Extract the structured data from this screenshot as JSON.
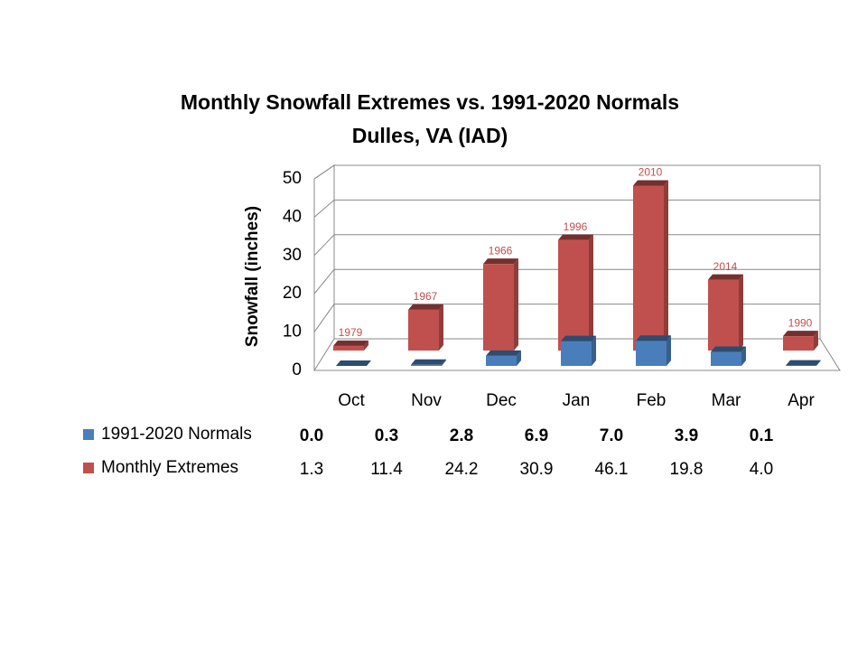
{
  "chart_data": {
    "type": "bar3d",
    "title": "Monthly Snowfall Extremes vs. 1991-2020 Normals",
    "subtitle": "Dulles, VA (IAD)",
    "y_label": "Snowfall (inches)",
    "categories": [
      "Oct",
      "Nov",
      "Dec",
      "Jan",
      "Feb",
      "Mar",
      "Apr"
    ],
    "series": [
      {
        "name": "1991-2020 Normals",
        "color": "#4a7ebb",
        "values": [
          0.0,
          0.3,
          2.8,
          6.9,
          7.0,
          3.9,
          0.1
        ],
        "value_labels": [
          "0.0",
          "0.3",
          "2.8",
          "6.9",
          "7.0",
          "3.9",
          "0.1"
        ]
      },
      {
        "name": "Monthly Extremes",
        "color": "#c0504d",
        "values": [
          1.3,
          11.4,
          24.2,
          30.9,
          46.1,
          19.8,
          4.0
        ],
        "value_labels": [
          "1.3",
          "11.4",
          "24.2",
          "30.9",
          "46.1",
          "19.8",
          "4.0"
        ]
      }
    ],
    "annotations": [
      "1979",
      "1967",
      "1966",
      "1996",
      "2010",
      "2014",
      "1990"
    ],
    "ylim": [
      0,
      50
    ],
    "yticks": [
      0,
      10,
      20,
      30,
      40,
      50
    ],
    "grid": true
  }
}
